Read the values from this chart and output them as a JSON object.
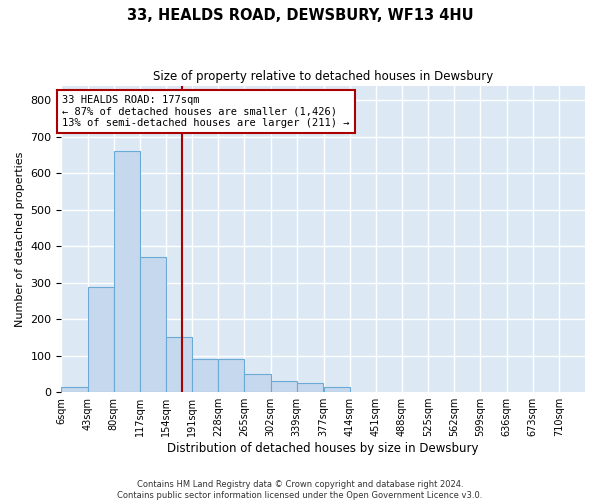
{
  "title": "33, HEALDS ROAD, DEWSBURY, WF13 4HU",
  "subtitle": "Size of property relative to detached houses in Dewsbury",
  "xlabel": "Distribution of detached houses by size in Dewsbury",
  "ylabel": "Number of detached properties",
  "bar_color": "#c5d8ee",
  "bar_edge_color": "#6aaad4",
  "background_color": "#dce9f5",
  "grid_color": "#ffffff",
  "vline_x": 177,
  "vline_color": "#aa0000",
  "annotation_text": "33 HEALDS ROAD: 177sqm\n← 87% of detached houses are smaller (1,426)\n13% of semi-detached houses are larger (211) →",
  "annotation_box_color": "#ffffff",
  "annotation_box_edge": "#aa0000",
  "footnote1": "Contains HM Land Registry data © Crown copyright and database right 2024.",
  "footnote2": "Contains public sector information licensed under the Open Government Licence v3.0.",
  "bin_edges": [
    6,
    43,
    80,
    117,
    154,
    191,
    228,
    265,
    302,
    339,
    377,
    414,
    451,
    488,
    525,
    562,
    599,
    636,
    673,
    710,
    747
  ],
  "bin_counts": [
    14,
    287,
    660,
    370,
    152,
    90,
    90,
    50,
    30,
    25,
    14,
    0,
    0,
    0,
    0,
    0,
    0,
    0,
    0,
    0
  ],
  "ylim": [
    0,
    840
  ],
  "yticks": [
    0,
    100,
    200,
    300,
    400,
    500,
    600,
    700,
    800
  ]
}
